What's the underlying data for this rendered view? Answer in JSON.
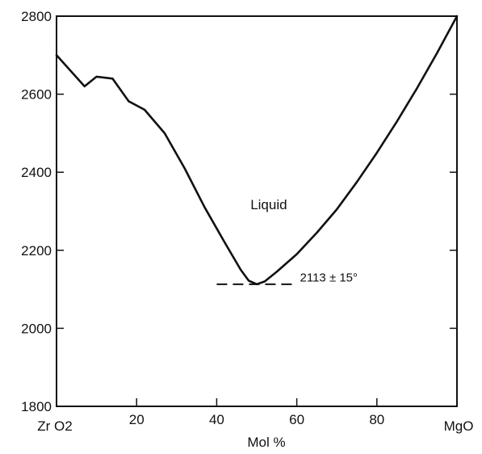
{
  "chart_data": {
    "type": "line",
    "xlabel": "Mol %",
    "ylabel": "",
    "xlim": [
      0,
      100
    ],
    "ylim": [
      1800,
      2800
    ],
    "x_ticks": [
      20,
      40,
      60,
      80
    ],
    "y_ticks": [
      1800,
      2000,
      2200,
      2400,
      2600,
      2800
    ],
    "endpoint_left": "Zr O2",
    "endpoint_right": "MgO",
    "grid": false,
    "series": [
      {
        "x": [
          0,
          7,
          10,
          14,
          18,
          22,
          27,
          32,
          37,
          42,
          46,
          48,
          50,
          52,
          55,
          60,
          65,
          70,
          75,
          80,
          85,
          90,
          95,
          100
        ],
        "y": [
          2700,
          2620,
          2645,
          2640,
          2582,
          2560,
          2500,
          2410,
          2310,
          2220,
          2150,
          2122,
          2113,
          2120,
          2145,
          2190,
          2245,
          2305,
          2375,
          2450,
          2530,
          2615,
          2705,
          2800
        ]
      }
    ],
    "annotations": [
      {
        "text": "Liquid",
        "x": 53,
        "y": 2305
      },
      {
        "text": "2113 ± 15°",
        "x": 68,
        "y": 2120
      }
    ],
    "reference_line": {
      "y": 2113,
      "x_start": 40,
      "x_end": 60,
      "style": "dashed"
    }
  }
}
